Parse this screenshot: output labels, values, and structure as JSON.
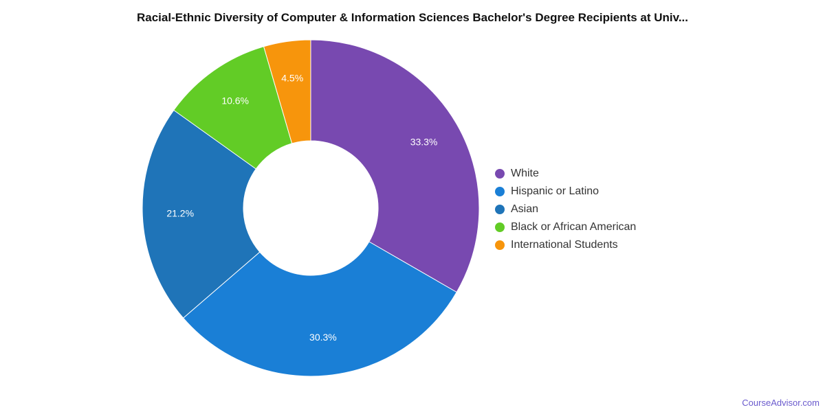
{
  "title": "Racial-Ethnic Diversity of Computer & Information Sciences Bachelor's Degree Recipients at Univ...",
  "watermark": "CourseAdvisor.com",
  "chart_data": {
    "type": "pie",
    "variant": "donut",
    "legend_position": "right",
    "slices": [
      {
        "name": "White",
        "value": 33.3,
        "label": "33.3%",
        "color": "#7849b0"
      },
      {
        "name": "Hispanic or Latino",
        "value": 30.3,
        "label": "30.3%",
        "color": "#1a7fd6"
      },
      {
        "name": "Asian",
        "value": 21.2,
        "label": "21.2%",
        "color": "#1f74b8"
      },
      {
        "name": "Black or African American",
        "value": 10.6,
        "label": "10.6%",
        "color": "#62cc26"
      },
      {
        "name": "International Students",
        "value": 4.5,
        "label": "4.5%",
        "color": "#f7950c"
      }
    ]
  }
}
